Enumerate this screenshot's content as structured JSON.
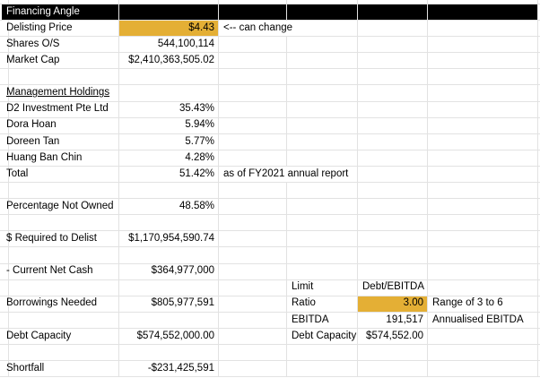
{
  "app": {
    "kind": "spreadsheet"
  },
  "colors": {
    "background": "#FFFFFF",
    "gridline": "#E2E2E2",
    "text": "#000000",
    "header_bg": "#000000",
    "header_text": "#FFFFFF",
    "highlight_yellow": "#E4AF35"
  },
  "sheet": {
    "rows": [
      {
        "name": "row-financing-angle",
        "cells": [
          {
            "col": "A",
            "text": "Financing Angle",
            "bg": "black",
            "name": "cell-financing-angle-title"
          },
          {
            "col": "B",
            "text": "",
            "bg": "black",
            "name": "cell-header-fill-b"
          },
          {
            "col": "C",
            "text": "",
            "bg": "black",
            "name": "cell-header-fill-c"
          },
          {
            "col": "D",
            "text": "",
            "bg": "black",
            "name": "cell-header-fill-d"
          },
          {
            "col": "E",
            "text": "",
            "bg": "black",
            "name": "cell-header-fill-e"
          },
          {
            "col": "F",
            "text": "",
            "bg": "black",
            "name": "cell-header-fill-f"
          }
        ]
      },
      {
        "name": "row-delisting-price",
        "cells": [
          {
            "col": "A",
            "text": "Delisting Price",
            "name": "cell-delisting-price-label"
          },
          {
            "col": "B",
            "text": "$4.43",
            "align": "right",
            "bg": "yellow",
            "name": "cell-delisting-price-value"
          },
          {
            "col": "C",
            "span": 2,
            "text": "<-- can change",
            "name": "cell-can-change-note"
          }
        ]
      },
      {
        "name": "row-shares-os",
        "cells": [
          {
            "col": "A",
            "text": "Shares O/S",
            "name": "cell-shares-os-label"
          },
          {
            "col": "B",
            "text": "544,100,114",
            "align": "right",
            "name": "cell-shares-os-value"
          }
        ]
      },
      {
        "name": "row-market-cap",
        "cells": [
          {
            "col": "A",
            "text": "Market Cap",
            "name": "cell-market-cap-label"
          },
          {
            "col": "B",
            "text": "$2,410,363,505.02",
            "align": "right",
            "name": "cell-market-cap-value"
          }
        ]
      },
      {
        "name": "row-blank-5",
        "cells": []
      },
      {
        "name": "row-management-holdings",
        "cells": [
          {
            "col": "A",
            "text": "Management Holdings",
            "underline": true,
            "name": "cell-management-holdings-heading"
          }
        ]
      },
      {
        "name": "row-d2-investment",
        "cells": [
          {
            "col": "A",
            "text": "D2 Investment Pte Ltd",
            "name": "cell-d2-investment-label"
          },
          {
            "col": "B",
            "text": "35.43%",
            "align": "right",
            "name": "cell-d2-investment-value"
          }
        ]
      },
      {
        "name": "row-dora-hoan",
        "cells": [
          {
            "col": "A",
            "text": "Dora Hoan",
            "name": "cell-dora-hoan-label"
          },
          {
            "col": "B",
            "text": "5.94%",
            "align": "right",
            "name": "cell-dora-hoan-value"
          }
        ]
      },
      {
        "name": "row-doreen-tan",
        "cells": [
          {
            "col": "A",
            "text": "Doreen Tan",
            "name": "cell-doreen-tan-label"
          },
          {
            "col": "B",
            "text": "5.77%",
            "align": "right",
            "name": "cell-doreen-tan-value"
          }
        ]
      },
      {
        "name": "row-huang-ban-chin",
        "cells": [
          {
            "col": "A",
            "text": "Huang Ban Chin",
            "name": "cell-huang-ban-chin-label"
          },
          {
            "col": "B",
            "text": "4.28%",
            "align": "right",
            "name": "cell-huang-ban-chin-value"
          }
        ]
      },
      {
        "name": "row-total-holdings",
        "cells": [
          {
            "col": "A",
            "text": "Total",
            "name": "cell-total-label"
          },
          {
            "col": "B",
            "text": "51.42%",
            "align": "right",
            "name": "cell-total-value"
          },
          {
            "col": "C",
            "span": 2,
            "text": "as of FY2021 annual report",
            "name": "cell-fy2021-note"
          }
        ]
      },
      {
        "name": "row-blank-12",
        "cells": []
      },
      {
        "name": "row-percentage-not-owned",
        "cells": [
          {
            "col": "A",
            "text": "Percentage Not Owned",
            "name": "cell-percentage-not-owned-label"
          },
          {
            "col": "B",
            "text": "48.58%",
            "align": "right",
            "name": "cell-percentage-not-owned-value"
          }
        ]
      },
      {
        "name": "row-blank-14",
        "cells": []
      },
      {
        "name": "row-required-to-delist",
        "cells": [
          {
            "col": "A",
            "text": "$ Required to Delist",
            "name": "cell-required-to-delist-label"
          },
          {
            "col": "B",
            "text": "$1,170,954,590.74",
            "align": "right",
            "name": "cell-required-to-delist-value"
          }
        ]
      },
      {
        "name": "row-blank-16",
        "cells": []
      },
      {
        "name": "row-current-net-cash",
        "cells": [
          {
            "col": "A",
            "text": "- Current Net Cash",
            "name": "cell-current-net-cash-label"
          },
          {
            "col": "B",
            "text": "$364,977,000",
            "align": "right",
            "name": "cell-current-net-cash-value"
          }
        ]
      },
      {
        "name": "row-limit",
        "cells": [
          {
            "col": "D",
            "text": "Limit",
            "name": "cell-limit-label"
          },
          {
            "col": "E",
            "text": "Debt/EBITDA",
            "name": "cell-limit-value"
          }
        ]
      },
      {
        "name": "row-borrowings-needed-ratio",
        "cells": [
          {
            "col": "A",
            "text": "Borrowings Needed",
            "name": "cell-borrowings-needed-label"
          },
          {
            "col": "B",
            "text": "$805,977,591",
            "align": "right",
            "name": "cell-borrowings-needed-value"
          },
          {
            "col": "D",
            "text": "Ratio",
            "name": "cell-ratio-label"
          },
          {
            "col": "E",
            "text": "3.00",
            "align": "right",
            "bg": "yellow",
            "name": "cell-ratio-value"
          },
          {
            "col": "F",
            "text": "Range of 3 to 6",
            "name": "cell-ratio-note"
          }
        ]
      },
      {
        "name": "row-ebitda",
        "cells": [
          {
            "col": "D",
            "text": "EBITDA",
            "name": "cell-ebitda-label"
          },
          {
            "col": "E",
            "text": "191,517",
            "align": "right",
            "name": "cell-ebitda-value"
          },
          {
            "col": "F",
            "text": "Annualised EBITDA",
            "name": "cell-ebitda-note"
          }
        ]
      },
      {
        "name": "row-debt-capacity",
        "cells": [
          {
            "col": "A",
            "text": "Debt Capacity",
            "name": "cell-debt-capacity-label"
          },
          {
            "col": "B",
            "text": "$574,552,000.00",
            "align": "right",
            "name": "cell-debt-capacity-value"
          },
          {
            "col": "D",
            "text": "Debt Capacity",
            "name": "cell-debt-capacity-side-label"
          },
          {
            "col": "E",
            "text": "$574,552.00",
            "align": "right",
            "name": "cell-debt-capacity-side-value"
          }
        ]
      },
      {
        "name": "row-blank-22",
        "cells": []
      },
      {
        "name": "row-shortfall",
        "cells": [
          {
            "col": "A",
            "text": "Shortfall",
            "name": "cell-shortfall-label"
          },
          {
            "col": "B",
            "text": "-$231,425,591",
            "align": "right",
            "name": "cell-shortfall-value"
          }
        ]
      }
    ]
  }
}
